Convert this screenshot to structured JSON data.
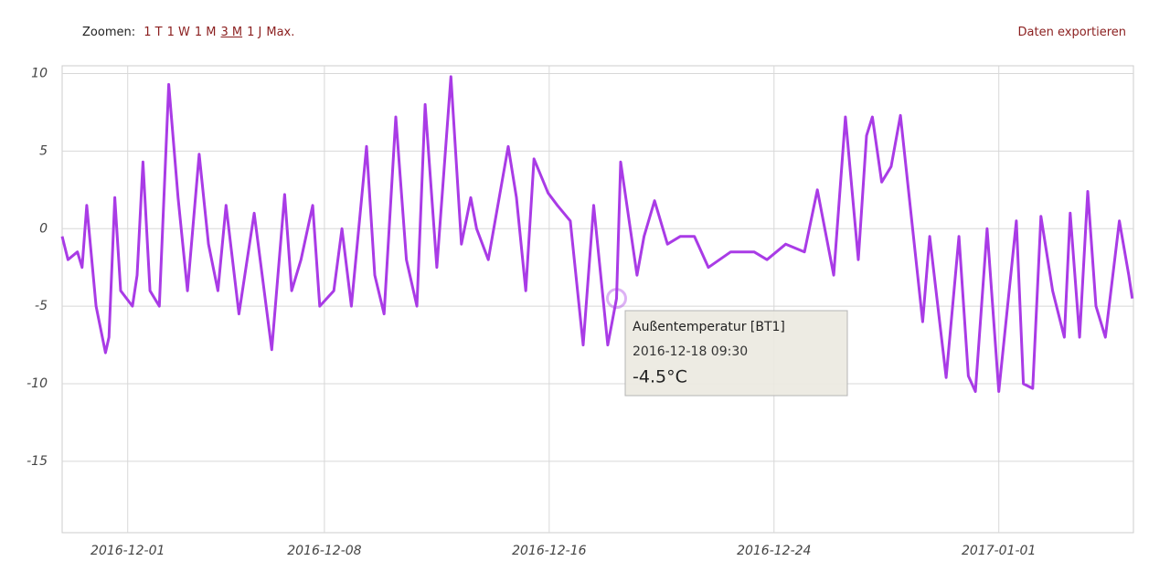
{
  "toolbar": {
    "zoom_label": "Zoomen:",
    "zoom_options": [
      "1 T",
      "1 W",
      "1 M",
      "3 M",
      "1 J",
      "Max."
    ],
    "export": "Daten exportieren"
  },
  "chart_data": {
    "type": "line",
    "x": [
      "2016-11-28 16:00",
      "2016-11-28 21:00",
      "2016-11-29 05:00",
      "2016-11-29 09:00",
      "2016-11-29 13:00",
      "2016-11-29 21:00",
      "2016-11-30 05:00",
      "2016-11-30 08:00",
      "2016-11-30 13:00",
      "2016-11-30 18:00",
      "2016-12-01 04:00",
      "2016-12-01 08:00",
      "2016-12-01 13:00",
      "2016-12-01 19:00",
      "2016-12-02 03:00",
      "2016-12-02 11:00",
      "2016-12-02 19:00",
      "2016-12-03 03:00",
      "2016-12-03 13:00",
      "2016-12-03 21:00",
      "2016-12-04 05:00",
      "2016-12-04 12:00",
      "2016-12-04 23:00",
      "2016-12-05 12:00",
      "2016-12-06 03:00",
      "2016-12-06 14:00",
      "2016-12-06 20:00",
      "2016-12-07 04:00",
      "2016-12-07 14:00",
      "2016-12-07 20:00",
      "2016-12-08 08:00",
      "2016-12-08 15:00",
      "2016-12-08 23:00",
      "2016-12-09 12:00",
      "2016-12-09 19:00",
      "2016-12-10 03:00",
      "2016-12-10 13:00",
      "2016-12-10 22:00",
      "2016-12-11 07:00",
      "2016-12-11 14:00",
      "2016-12-12 00:00",
      "2016-12-12 12:00",
      "2016-12-12 21:00",
      "2016-12-13 05:00",
      "2016-12-13 10:00",
      "2016-12-13 20:00",
      "2016-12-14 13:00",
      "2016-12-14 20:00",
      "2016-12-15 04:00",
      "2016-12-15 11:00",
      "2016-12-15 23:00",
      "2016-12-16 07:00",
      "2016-12-16 18:00",
      "2016-12-17 05:00",
      "2016-12-17 14:00",
      "2016-12-18 02:00",
      "2016-12-18 09:30",
      "2016-12-18 13:00",
      "2016-12-19 03:00",
      "2016-12-19 09:00",
      "2016-12-19 18:00",
      "2016-12-20 05:00",
      "2016-12-20 16:00",
      "2016-12-21 04:00",
      "2016-12-21 16:00",
      "2016-12-22 11:00",
      "2016-12-23 07:00",
      "2016-12-23 18:00",
      "2016-12-24 10:00",
      "2016-12-25 02:00",
      "2016-12-25 13:00",
      "2016-12-26 03:00",
      "2016-12-26 13:00",
      "2016-12-27 00:00",
      "2016-12-27 07:00",
      "2016-12-27 12:00",
      "2016-12-27 20:00",
      "2016-12-28 04:00",
      "2016-12-28 12:00",
      "2016-12-28 21:00",
      "2016-12-29 07:00",
      "2016-12-29 13:00",
      "2016-12-30 03:00",
      "2016-12-30 14:00",
      "2016-12-30 22:00",
      "2016-12-31 04:00",
      "2016-12-31 14:00",
      "2017-01-01 00:00",
      "2017-01-01 15:00",
      "2017-01-01 21:00",
      "2017-01-02 05:00",
      "2017-01-02 12:00",
      "2017-01-02 22:00",
      "2017-01-03 08:00",
      "2017-01-03 13:00",
      "2017-01-03 21:00",
      "2017-01-04 04:00",
      "2017-01-04 11:00",
      "2017-01-04 19:00",
      "2017-01-05 07:00",
      "2017-01-05 15:00",
      "2017-01-05 18:00"
    ],
    "series": [
      {
        "name": "Außentemperatur [BT1]",
        "color": "#a93be6",
        "values": [
          -0.5,
          -2,
          -1.5,
          -2.5,
          1.5,
          -5,
          -8,
          -7,
          2,
          -4,
          -5,
          -3,
          4.3,
          -4,
          -5,
          9.3,
          2,
          -4,
          4.8,
          -1,
          -4,
          1.5,
          -5.5,
          1,
          -7.8,
          2.2,
          -4,
          -2,
          1.5,
          -5,
          -4,
          0,
          -5,
          5.3,
          -3,
          -5.5,
          7.2,
          -2,
          -5,
          8,
          -2.5,
          9.8,
          -1,
          2,
          0,
          -2,
          5.3,
          2,
          -4,
          4.5,
          2.3,
          1.5,
          0.5,
          -7.5,
          1.5,
          -7.5,
          -4.5,
          4.3,
          -3,
          -0.5,
          1.8,
          -1,
          -0.5,
          -0.5,
          -2.5,
          -1.5,
          -1.5,
          -2,
          -1,
          -1.5,
          2.5,
          -3,
          7.2,
          -2,
          6,
          7.2,
          3,
          4,
          7.3,
          1,
          -6,
          -0.5,
          -9.6,
          -0.5,
          -9.5,
          -10.5,
          0,
          -10.5,
          0.5,
          -10,
          -10.3,
          0.8,
          -4,
          -7,
          1,
          -7,
          2.4,
          -5,
          -7,
          0.5,
          -3,
          -4.5
        ]
      }
    ],
    "xlim": [
      "2016-11-28 16:00",
      "2017-01-05 19:00"
    ],
    "xticks": [
      "2016-12-01",
      "2016-12-08",
      "2016-12-16",
      "2016-12-24",
      "2017-01-01"
    ],
    "ylim": [
      -19.6,
      10.5
    ],
    "yticks": [
      10,
      5,
      0,
      -5,
      -10,
      -15
    ],
    "grid": true,
    "tooltip": {
      "value_label": "-4.5°C"
    }
  }
}
